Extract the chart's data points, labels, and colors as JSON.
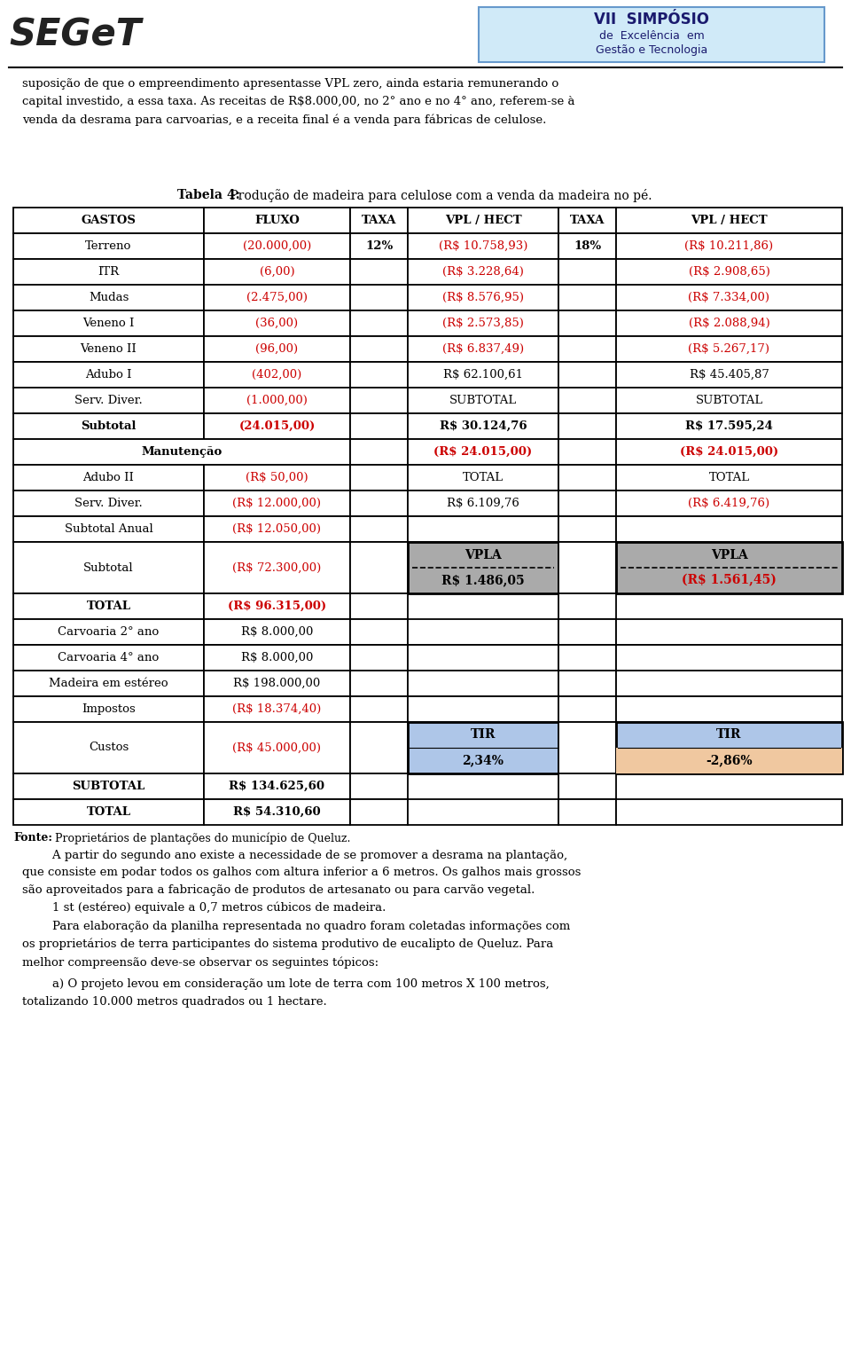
{
  "title_bold": "Tabela 4:",
  "title_regular": " Produção de madeira para celulose com a venda da madeira no pé.",
  "header": [
    "GASTOS",
    "FLUXO",
    "TAXA",
    "VPL / HECT",
    "TAXA",
    "VPL / HECT"
  ],
  "rows": [
    {
      "gastos": "Terreno",
      "fluxo": "(20.000,00)",
      "taxa1": "12%",
      "vpl1": "(R$ 10.758,93)",
      "taxa2": "18%",
      "vpl2": "(R$ 10.211,86)",
      "fluxo_red": true,
      "vpl1_red": true,
      "vpl2_red": true
    },
    {
      "gastos": "ITR",
      "fluxo": "(6,00)",
      "taxa1": "",
      "vpl1": "(R$ 3.228,64)",
      "taxa2": "",
      "vpl2": "(R$ 2.908,65)",
      "fluxo_red": true,
      "vpl1_red": true,
      "vpl2_red": true
    },
    {
      "gastos": "Mudas",
      "fluxo": "(2.475,00)",
      "taxa1": "",
      "vpl1": "(R$ 8.576,95)",
      "taxa2": "",
      "vpl2": "(R$ 7.334,00)",
      "fluxo_red": true,
      "vpl1_red": true,
      "vpl2_red": true
    },
    {
      "gastos": "Veneno I",
      "fluxo": "(36,00)",
      "taxa1": "",
      "vpl1": "(R$ 2.573,85)",
      "taxa2": "",
      "vpl2": "(R$ 2.088,94)",
      "fluxo_red": true,
      "vpl1_red": true,
      "vpl2_red": true
    },
    {
      "gastos": "Veneno II",
      "fluxo": "(96,00)",
      "taxa1": "",
      "vpl1": "(R$ 6.837,49)",
      "taxa2": "",
      "vpl2": "(R$ 5.267,17)",
      "fluxo_red": true,
      "vpl1_red": true,
      "vpl2_red": true
    },
    {
      "gastos": "Adubo I",
      "fluxo": "(402,00)",
      "taxa1": "",
      "vpl1": "R$ 62.100,61",
      "taxa2": "",
      "vpl2": "R$ 45.405,87",
      "fluxo_red": true,
      "vpl1_red": false,
      "vpl2_red": false
    },
    {
      "gastos": "Serv. Diver.",
      "fluxo": "(1.000,00)",
      "taxa1": "",
      "vpl1": "SUBTOTAL",
      "taxa2": "",
      "vpl2": "SUBTOTAL",
      "fluxo_red": true,
      "vpl1_red": false,
      "vpl2_red": false
    },
    {
      "gastos": "Subtotal",
      "fluxo": "(24.015,00)",
      "taxa1": "",
      "vpl1": "R$ 30.124,76",
      "taxa2": "",
      "vpl2": "R$ 17.595,24",
      "fluxo_red": true,
      "vpl1_red": false,
      "vpl2_red": false,
      "gastos_bold": true
    },
    {
      "gastos": "Manutenção",
      "fluxo": "",
      "taxa1": "",
      "vpl1": "(R$ 24.015,00)",
      "taxa2": "",
      "vpl2": "(R$ 24.015,00)",
      "fluxo_red": false,
      "vpl1_red": true,
      "vpl2_red": true,
      "gastos_bold": true,
      "merged": true
    },
    {
      "gastos": "Adubo II",
      "fluxo": "(R$ 50,00)",
      "taxa1": "",
      "vpl1": "TOTAL",
      "taxa2": "",
      "vpl2": "TOTAL",
      "fluxo_red": true,
      "vpl1_red": false,
      "vpl2_red": false
    },
    {
      "gastos": "Serv. Diver.",
      "fluxo": "(R$ 12.000,00)",
      "taxa1": "",
      "vpl1": "R$ 6.109,76",
      "taxa2": "",
      "vpl2": "(R$ 6.419,76)",
      "fluxo_red": true,
      "vpl1_red": false,
      "vpl2_red": true
    },
    {
      "gastos": "Subtotal Anual",
      "fluxo": "(R$ 12.050,00)",
      "taxa1": "",
      "vpl1": "",
      "taxa2": "",
      "vpl2": "",
      "fluxo_red": true
    },
    {
      "gastos": "Subtotal",
      "fluxo": "(R$ 72.300,00)",
      "taxa1": "",
      "vpl1": "VPLA\nR$ 1.486,05",
      "taxa2": "",
      "vpl2": "VPLA\n(R$ 1.561,45)",
      "fluxo_red": true,
      "vpl1_red": false,
      "vpl2_red": true,
      "vpla_row": true,
      "double_height": true
    },
    {
      "gastos": "TOTAL",
      "fluxo": "(R$ 96.315,00)",
      "taxa1": "",
      "vpl1": "",
      "taxa2": "",
      "vpl2": "",
      "fluxo_red": true,
      "gastos_bold": true,
      "skip_vpl": true
    },
    {
      "gastos": "Carvoaria 2° ano",
      "fluxo": "R$ 8.000,00",
      "taxa1": "",
      "vpl1": "",
      "taxa2": "",
      "vpl2": "",
      "fluxo_red": false
    },
    {
      "gastos": "Carvoaria 4° ano",
      "fluxo": "R$ 8.000,00",
      "taxa1": "",
      "vpl1": "",
      "taxa2": "",
      "vpl2": "",
      "fluxo_red": false
    },
    {
      "gastos": "Madeira em estéreo",
      "fluxo": "R$ 198.000,00",
      "taxa1": "",
      "vpl1": "",
      "taxa2": "",
      "vpl2": "",
      "fluxo_red": false
    },
    {
      "gastos": "Impostos",
      "fluxo": "(R$ 18.374,40)",
      "taxa1": "",
      "vpl1": "",
      "taxa2": "",
      "vpl2": "",
      "fluxo_red": true
    },
    {
      "gastos": "Custos",
      "fluxo": "(R$ 45.000,00)",
      "taxa1": "",
      "vpl1": "TIR\n2,34%",
      "taxa2": "",
      "vpl2": "TIR\n-2,86%",
      "fluxo_red": true,
      "tir_row": true,
      "double_height": true
    },
    {
      "gastos": "SUBTOTAL",
      "fluxo": "R$ 134.625,60",
      "taxa1": "",
      "vpl1": "",
      "taxa2": "",
      "vpl2": "",
      "fluxo_red": false,
      "gastos_bold": true,
      "skip_vpl": true
    },
    {
      "gastos": "TOTAL",
      "fluxo": "R$ 54.310,60",
      "taxa1": "",
      "vpl1": "",
      "taxa2": "",
      "vpl2": "",
      "fluxo_red": false,
      "gastos_bold": true
    }
  ],
  "fonte_bold": "Fonte:",
  "fonte_regular": " Proprietários de plantações do município de Queluz.",
  "paragraph1": "        A partir do segundo ano existe a necessidade de se promover a desrama na plantação,\nque consiste em podar todos os galhos com altura inferior a 6 metros. Os galhos mais grossos\nsão aproveitados para a fabricação de produtos de artesanato ou para carvão vegetal.\n        1 st (estéreo) equivale a 0,7 metros cúbicos de madeira.",
  "paragraph2": "        Para elaboração da planilha representada no quadro foram coletadas informações com\nos proprietários de terra participantes do sistema produtivo de eucalipto de Queluz. Para\nmelhor compreensão deve-se observar os seguintes tópicos:",
  "paragraph3": "        a) O projeto levou em consideração um lote de terra com 100 metros X 100 metros,\ntotalizando 10.000 metros quadrados ou 1 hectare.",
  "red_color": "#cc0000",
  "bg_gray": "#aaaaaa",
  "bg_blue": "#aec6e8",
  "bg_peach": "#f0c8a0"
}
